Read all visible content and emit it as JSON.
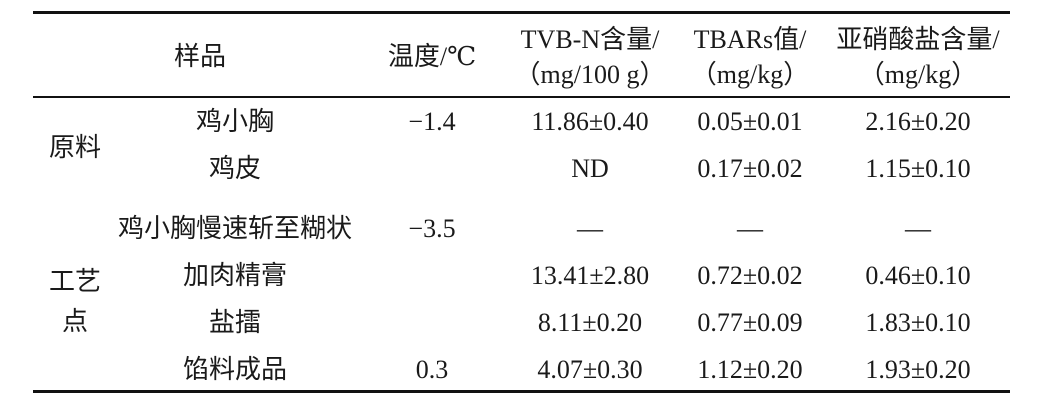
{
  "header": [
    [
      "样品"
    ],
    [
      "温度/℃"
    ],
    [
      "TVB-N含量/",
      "（mg/100 g）"
    ],
    [
      "TBARs值/",
      "（mg/kg）"
    ],
    [
      "亚硝酸盐含量/",
      "（mg/kg）"
    ]
  ],
  "groups": [
    {
      "label": "原料",
      "rows": [
        [
          "鸡小胸",
          "−1.4",
          "11.86±0.40",
          "0.05±0.01",
          "2.16±0.20"
        ],
        [
          "鸡皮",
          null,
          "ND",
          "0.17±0.02",
          "1.15±0.10"
        ]
      ]
    },
    {
      "label": "工艺点",
      "rows": [
        [
          "鸡小胸慢速斩至糊状",
          "−3.5",
          "—",
          "—",
          "—"
        ],
        [
          "加肉精膏",
          null,
          "13.41±2.80",
          "0.72±0.02",
          "0.46±0.10"
        ],
        [
          "盐擂",
          null,
          "8.11±0.20",
          "0.77±0.09",
          "1.83±0.10"
        ],
        [
          "馅料成品",
          "0.3",
          "4.07±0.30",
          "1.12±0.20",
          "1.93±0.20"
        ]
      ]
    }
  ]
}
